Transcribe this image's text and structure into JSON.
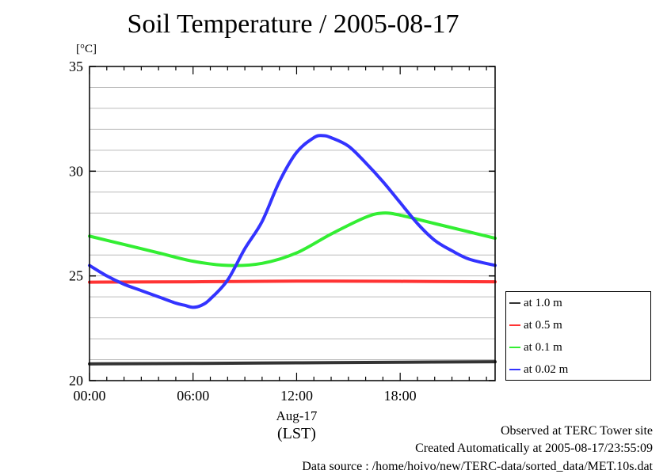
{
  "chart_data": {
    "type": "line",
    "title": "Soil Temperature / 2005-08-17",
    "ylabel": "[°C]",
    "xlabel": "(LST)",
    "date_label": "Aug-17",
    "x_unit": "hours",
    "xlim": [
      0,
      23.5
    ],
    "ylim": [
      20,
      35
    ],
    "y_ticks": [
      20,
      25,
      30,
      35
    ],
    "y_tick_labels": [
      "20",
      "25",
      "30",
      "35"
    ],
    "x_ticks": [
      0,
      6,
      12,
      18
    ],
    "x_tick_labels": [
      "00:00",
      "06:00",
      "12:00",
      "18:00"
    ],
    "grid": true,
    "legend_position": "right",
    "series": [
      {
        "name": "at 1.0 m",
        "color": "#333333",
        "x": [
          0,
          6,
          12,
          18,
          23.5
        ],
        "y": [
          20.8,
          20.82,
          20.85,
          20.88,
          20.9
        ]
      },
      {
        "name": "at 0.5 m",
        "color": "#ff3333",
        "x": [
          0,
          6,
          12,
          18,
          23.5
        ],
        "y": [
          24.7,
          24.72,
          24.75,
          24.74,
          24.72
        ]
      },
      {
        "name": "at 0.1 m",
        "color": "#33ee33",
        "x": [
          0,
          2,
          4,
          6,
          8,
          10,
          12,
          14,
          16,
          17,
          18,
          20,
          22,
          23.5
        ],
        "y": [
          26.9,
          26.5,
          26.1,
          25.7,
          25.5,
          25.6,
          26.1,
          27.0,
          27.8,
          28.0,
          27.9,
          27.5,
          27.1,
          26.8
        ]
      },
      {
        "name": "at 0.02 m",
        "color": "#3333ff",
        "x": [
          0,
          1,
          2,
          3,
          4,
          5,
          5.5,
          6,
          6.5,
          7,
          8,
          9,
          10,
          11,
          12,
          13,
          13.5,
          14,
          15,
          16,
          17,
          18,
          19,
          20,
          21,
          22,
          23.5
        ],
        "y": [
          25.5,
          25.0,
          24.6,
          24.3,
          24.0,
          23.7,
          23.6,
          23.5,
          23.6,
          23.9,
          24.8,
          26.3,
          27.6,
          29.5,
          30.9,
          31.6,
          31.7,
          31.6,
          31.2,
          30.4,
          29.5,
          28.5,
          27.5,
          26.7,
          26.2,
          25.8,
          25.5
        ]
      }
    ]
  },
  "footer": {
    "line1": "Observed at TERC Tower site",
    "line2": "Created Automatically at 2005-08-17/23:55:09",
    "line3": "Data source : /home/hoivo/new/TERC-data/sorted_data/MET.10s.dat"
  }
}
